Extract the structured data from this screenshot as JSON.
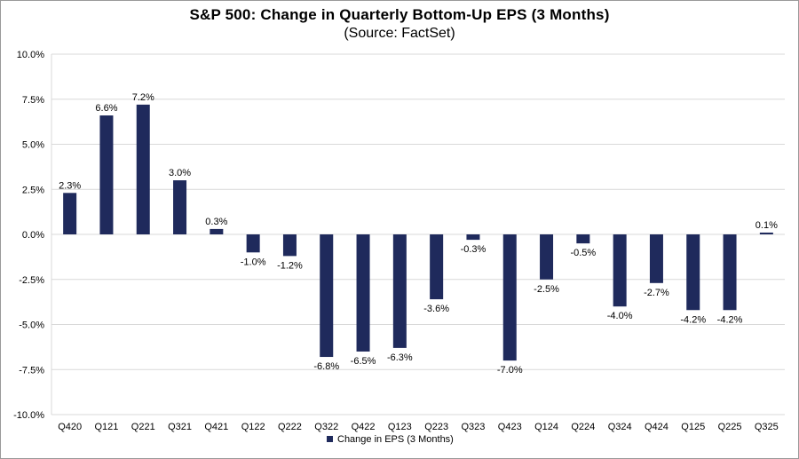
{
  "chart_data": {
    "type": "bar",
    "title": "S&P 500: Change in Quarterly Bottom-Up EPS (3 Months)",
    "subtitle": "(Source: FactSet)",
    "xlabel": "",
    "ylabel": "",
    "ylim": [
      -10.0,
      10.0
    ],
    "ytick_step": 2.5,
    "yticks": [
      "10.0%",
      "7.5%",
      "5.0%",
      "2.5%",
      "0.0%",
      "-2.5%",
      "-5.0%",
      "-7.5%",
      "-10.0%"
    ],
    "grid": true,
    "legend_position": "bottom",
    "bar_color": "#1F2A5C",
    "categories": [
      "Q420",
      "Q121",
      "Q221",
      "Q321",
      "Q421",
      "Q122",
      "Q222",
      "Q322",
      "Q422",
      "Q123",
      "Q223",
      "Q323",
      "Q423",
      "Q124",
      "Q224",
      "Q324",
      "Q424",
      "Q125",
      "Q225",
      "Q325"
    ],
    "series": [
      {
        "name": "Change in EPS (3 Months)",
        "values": [
          2.3,
          6.6,
          7.2,
          3.0,
          0.3,
          -1.0,
          -1.2,
          -6.8,
          -6.5,
          -6.3,
          -3.6,
          -0.3,
          -7.0,
          -2.5,
          -0.5,
          -4.0,
          -2.7,
          -4.2,
          -4.2,
          0.1
        ],
        "labels": [
          "2.3%",
          "6.6%",
          "7.2%",
          "3.0%",
          "0.3%",
          "-1.0%",
          "-1.2%",
          "-6.8%",
          "-6.5%",
          "-6.3%",
          "-3.6%",
          "-0.3%",
          "-7.0%",
          "-2.5%",
          "-0.5%",
          "-4.0%",
          "-2.7%",
          "-4.2%",
          "-4.2%",
          "0.1%"
        ]
      }
    ]
  }
}
